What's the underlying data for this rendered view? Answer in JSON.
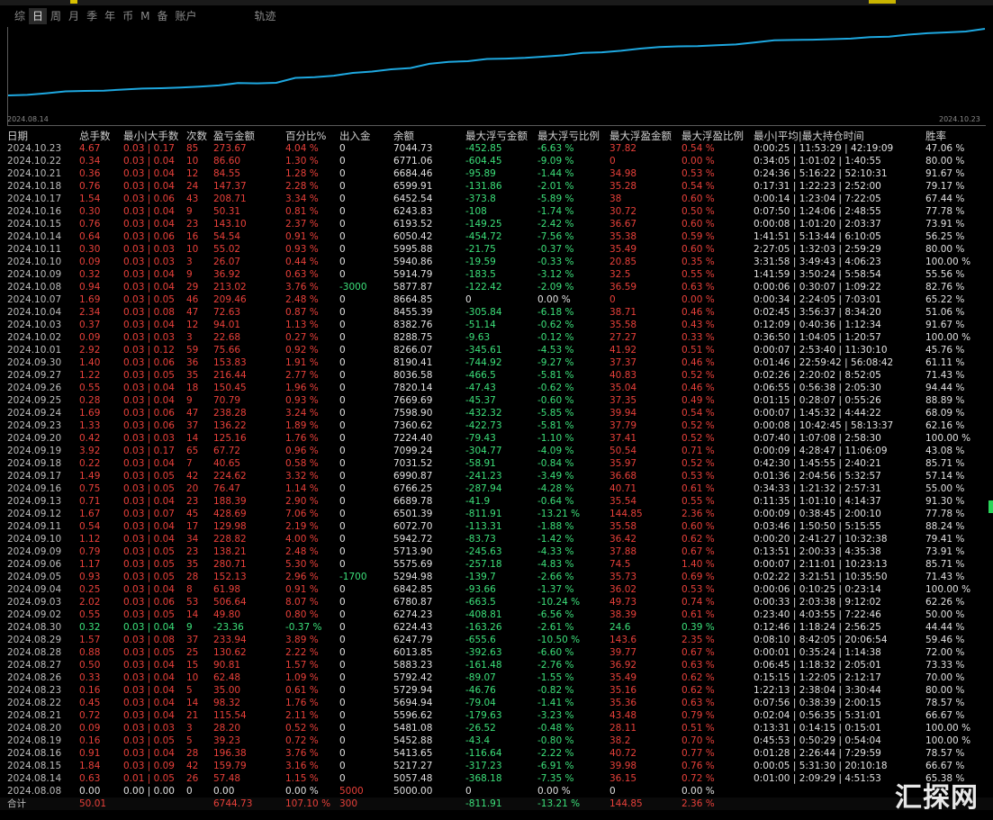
{
  "tabs": [
    "综",
    "日",
    "周",
    "月",
    "季",
    "年",
    "币",
    "M",
    "备",
    "账户"
  ],
  "active_tab": 1,
  "track_tab": "轨迹",
  "chart": {
    "start_date": "2024.08.14",
    "end_date": "2024.10.23",
    "line_color": "#1ea8e0"
  },
  "headers": [
    "日期",
    "总手数",
    "最小|大手数",
    "次数",
    "盈亏金额",
    "百分比%",
    "出入金",
    "余额",
    "最大浮亏金额",
    "最大浮亏比例",
    "最大浮盈金额",
    "最大浮盈比例",
    "最小|平均|最大持仓时间",
    "胜率"
  ],
  "rows": [
    [
      "2024.10.23",
      "4.67",
      "0.03 | 0.17",
      "85",
      "273.67",
      "4.04 %",
      "0",
      "7044.73",
      "-452.85",
      "-6.63 %",
      "37.82",
      "0.54 %",
      "0:00:25 | 11:53:29 | 42:19:09",
      "47.06 %"
    ],
    [
      "2024.10.22",
      "0.34",
      "0.03 | 0.04",
      "10",
      "86.60",
      "1.30 %",
      "0",
      "6771.06",
      "-604.45",
      "-9.09 %",
      "0",
      "0.00 %",
      "0:34:05 | 1:01:02 | 1:40:55",
      "80.00 %"
    ],
    [
      "2024.10.21",
      "0.36",
      "0.03 | 0.04",
      "12",
      "84.55",
      "1.28 %",
      "0",
      "6684.46",
      "-95.89",
      "-1.44 %",
      "34.98",
      "0.53 %",
      "0:24:36 | 5:16:22 | 52:10:31",
      "91.67 %"
    ],
    [
      "2024.10.18",
      "0.76",
      "0.03 | 0.04",
      "24",
      "147.37",
      "2.28 %",
      "0",
      "6599.91",
      "-131.86",
      "-2.01 %",
      "35.28",
      "0.54 %",
      "0:17:31 | 1:22:23 | 2:52:00",
      "79.17 %"
    ],
    [
      "2024.10.17",
      "1.54",
      "0.03 | 0.06",
      "43",
      "208.71",
      "3.34 %",
      "0",
      "6452.54",
      "-373.8",
      "-5.89 %",
      "38",
      "0.60 %",
      "0:00:14 | 1:23:04 | 7:22:05",
      "67.44 %"
    ],
    [
      "2024.10.16",
      "0.30",
      "0.03 | 0.04",
      "9",
      "50.31",
      "0.81 %",
      "0",
      "6243.83",
      "-108",
      "-1.74 %",
      "30.72",
      "0.50 %",
      "0:07:50 | 1:24:06 | 2:48:55",
      "77.78 %"
    ],
    [
      "2024.10.15",
      "0.76",
      "0.03 | 0.04",
      "23",
      "143.10",
      "2.37 %",
      "0",
      "6193.52",
      "-149.25",
      "-2.42 %",
      "36.67",
      "0.60 %",
      "0:00:08 | 1:01:20 | 2:03:37",
      "73.91 %"
    ],
    [
      "2024.10.14",
      "0.64",
      "0.03 | 0.06",
      "16",
      "54.54",
      "0.91 %",
      "0",
      "6050.42",
      "-454.72",
      "-7.56 %",
      "35.38",
      "0.59 %",
      "1:41:51 | 5:13:44 | 6:10:05",
      "56.25 %"
    ],
    [
      "2024.10.11",
      "0.30",
      "0.03 | 0.03",
      "10",
      "55.02",
      "0.93 %",
      "0",
      "5995.88",
      "-21.75",
      "-0.37 %",
      "35.49",
      "0.60 %",
      "2:27:05 | 1:32:03 | 2:59:29",
      "80.00 %"
    ],
    [
      "2024.10.10",
      "0.09",
      "0.03 | 0.03",
      "3",
      "26.07",
      "0.44 %",
      "0",
      "5940.86",
      "-19.59",
      "-0.33 %",
      "20.85",
      "0.35 %",
      "3:31:58 | 3:49:43 | 4:06:23",
      "100.00 %"
    ],
    [
      "2024.10.09",
      "0.32",
      "0.03 | 0.04",
      "9",
      "36.92",
      "0.63 %",
      "0",
      "5914.79",
      "-183.5",
      "-3.12 %",
      "32.5",
      "0.55 %",
      "1:41:59 | 3:50:24 | 5:58:54",
      "55.56 %"
    ],
    [
      "2024.10.08",
      "0.94",
      "0.03 | 0.04",
      "29",
      "213.02",
      "3.76 %",
      "-3000",
      "5877.87",
      "-122.42",
      "-2.09 %",
      "36.59",
      "0.63 %",
      "0:00:06 | 0:30:07 | 1:09:22",
      "82.76 %"
    ],
    [
      "2024.10.07",
      "1.69",
      "0.03 | 0.05",
      "46",
      "209.46",
      "2.48 %",
      "0",
      "8664.85",
      "0",
      "0.00 %",
      "0",
      "0.00 %",
      "0:00:34 | 2:24:05 | 7:03:01",
      "65.22 %"
    ],
    [
      "2024.10.04",
      "2.34",
      "0.03 | 0.08",
      "47",
      "72.63",
      "0.87 %",
      "0",
      "8455.39",
      "-305.84",
      "-6.18 %",
      "38.71",
      "0.46 %",
      "0:02:45 | 3:56:37 | 8:34:20",
      "51.06 %"
    ],
    [
      "2024.10.03",
      "0.37",
      "0.03 | 0.04",
      "12",
      "94.01",
      "1.13 %",
      "0",
      "8382.76",
      "-51.14",
      "-0.62 %",
      "35.58",
      "0.43 %",
      "0:12:09 | 0:40:36 | 1:12:34",
      "91.67 %"
    ],
    [
      "2024.10.02",
      "0.09",
      "0.03 | 0.03",
      "3",
      "22.68",
      "0.27 %",
      "0",
      "8288.75",
      "-9.63",
      "-0.12 %",
      "27.27",
      "0.33 %",
      "0:36:50 | 1:04:05 | 1:20:57",
      "100.00 %"
    ],
    [
      "2024.10.01",
      "2.92",
      "0.03 | 0.12",
      "59",
      "75.66",
      "0.92 %",
      "0",
      "8266.07",
      "-345.61",
      "-4.53 %",
      "41.92",
      "0.51 %",
      "0:00:07 | 2:53:40 | 11:30:10",
      "45.76 %"
    ],
    [
      "2024.09.30",
      "1.40",
      "0.03 | 0.06",
      "36",
      "153.83",
      "1.91 %",
      "0",
      "8190.41",
      "-744.92",
      "-9.27 %",
      "37.37",
      "0.46 %",
      "0:01:46 | 22:59:42 | 56:08:42",
      "61.11 %"
    ],
    [
      "2024.09.27",
      "1.22",
      "0.03 | 0.05",
      "35",
      "216.44",
      "2.77 %",
      "0",
      "8036.58",
      "-466.5",
      "-5.81 %",
      "40.83",
      "0.52 %",
      "0:02:26 | 2:20:02 | 8:52:05",
      "71.43 %"
    ],
    [
      "2024.09.26",
      "0.55",
      "0.03 | 0.04",
      "18",
      "150.45",
      "1.96 %",
      "0",
      "7820.14",
      "-47.43",
      "-0.62 %",
      "35.04",
      "0.46 %",
      "0:06:55 | 0:56:38 | 2:05:30",
      "94.44 %"
    ],
    [
      "2024.09.25",
      "0.28",
      "0.03 | 0.04",
      "9",
      "70.79",
      "0.93 %",
      "0",
      "7669.69",
      "-45.37",
      "-0.60 %",
      "37.35",
      "0.49 %",
      "0:01:15 | 0:28:07 | 0:55:26",
      "88.89 %"
    ],
    [
      "2024.09.24",
      "1.69",
      "0.03 | 0.06",
      "47",
      "238.28",
      "3.24 %",
      "0",
      "7598.90",
      "-432.32",
      "-5.85 %",
      "39.94",
      "0.54 %",
      "0:00:07 | 1:45:32 | 4:44:22",
      "68.09 %"
    ],
    [
      "2024.09.23",
      "1.33",
      "0.03 | 0.06",
      "37",
      "136.22",
      "1.89 %",
      "0",
      "7360.62",
      "-422.73",
      "-5.81 %",
      "37.79",
      "0.52 %",
      "0:00:08 | 10:42:45 | 58:13:37",
      "62.16 %"
    ],
    [
      "2024.09.20",
      "0.42",
      "0.03 | 0.03",
      "14",
      "125.16",
      "1.76 %",
      "0",
      "7224.40",
      "-79.43",
      "-1.10 %",
      "37.41",
      "0.52 %",
      "0:07:40 | 1:07:08 | 2:58:30",
      "100.00 %"
    ],
    [
      "2024.09.19",
      "3.92",
      "0.03 | 0.17",
      "65",
      "67.72",
      "0.96 %",
      "0",
      "7099.24",
      "-304.77",
      "-4.09 %",
      "50.54",
      "0.71 %",
      "0:00:09 | 4:28:47 | 11:06:09",
      "43.08 %"
    ],
    [
      "2024.09.18",
      "0.22",
      "0.03 | 0.04",
      "7",
      "40.65",
      "0.58 %",
      "0",
      "7031.52",
      "-58.91",
      "-0.84 %",
      "35.97",
      "0.52 %",
      "0:42:30 | 1:45:55 | 2:40:21",
      "85.71 %"
    ],
    [
      "2024.09.17",
      "1.49",
      "0.03 | 0.05",
      "42",
      "224.62",
      "3.32 %",
      "0",
      "6990.87",
      "-241.23",
      "-3.49 %",
      "36.68",
      "0.53 %",
      "0:01:36 | 2:04:56 | 5:32:57",
      "57.14 %"
    ],
    [
      "2024.09.16",
      "0.75",
      "0.03 | 0.05",
      "20",
      "76.47",
      "1.14 %",
      "0",
      "6766.25",
      "-287.94",
      "-4.28 %",
      "40.71",
      "0.61 %",
      "0:34:33 | 1:21:32 | 2:57:31",
      "55.00 %"
    ],
    [
      "2024.09.13",
      "0.71",
      "0.03 | 0.04",
      "23",
      "188.39",
      "2.90 %",
      "0",
      "6689.78",
      "-41.9",
      "-0.64 %",
      "35.54",
      "0.55 %",
      "0:11:35 | 1:01:10 | 4:14:37",
      "91.30 %"
    ],
    [
      "2024.09.12",
      "1.67",
      "0.03 | 0.07",
      "45",
      "428.69",
      "7.06 %",
      "0",
      "6501.39",
      "-811.91",
      "-13.21 %",
      "144.85",
      "2.36 %",
      "0:00:09 | 0:38:45 | 2:00:10",
      "77.78 %"
    ],
    [
      "2024.09.11",
      "0.54",
      "0.03 | 0.04",
      "17",
      "129.98",
      "2.19 %",
      "0",
      "6072.70",
      "-113.31",
      "-1.88 %",
      "35.58",
      "0.60 %",
      "0:03:46 | 1:50:50 | 5:15:55",
      "88.24 %"
    ],
    [
      "2024.09.10",
      "1.12",
      "0.03 | 0.04",
      "34",
      "228.82",
      "4.00 %",
      "0",
      "5942.72",
      "-83.73",
      "-1.42 %",
      "36.42",
      "0.62 %",
      "0:00:20 | 2:41:27 | 10:32:38",
      "79.41 %"
    ],
    [
      "2024.09.09",
      "0.79",
      "0.03 | 0.05",
      "23",
      "138.21",
      "2.48 %",
      "0",
      "5713.90",
      "-245.63",
      "-4.33 %",
      "37.88",
      "0.67 %",
      "0:13:51 | 2:00:33 | 4:35:38",
      "73.91 %"
    ],
    [
      "2024.09.06",
      "1.17",
      "0.03 | 0.05",
      "35",
      "280.71",
      "5.30 %",
      "0",
      "5575.69",
      "-257.18",
      "-4.83 %",
      "74.5",
      "1.40 %",
      "0:00:07 | 2:11:01 | 10:23:13",
      "85.71 %"
    ],
    [
      "2024.09.05",
      "0.93",
      "0.03 | 0.05",
      "28",
      "152.13",
      "2.96 %",
      "-1700",
      "5294.98",
      "-139.7",
      "-2.66 %",
      "35.73",
      "0.69 %",
      "0:02:22 | 3:21:51 | 10:35:50",
      "71.43 %"
    ],
    [
      "2024.09.04",
      "0.25",
      "0.03 | 0.04",
      "8",
      "61.98",
      "0.91 %",
      "0",
      "6842.85",
      "-93.66",
      "-1.37 %",
      "36.02",
      "0.53 %",
      "0:00:06 | 0:10:25 | 0:23:14",
      "100.00 %"
    ],
    [
      "2024.09.03",
      "2.02",
      "0.03 | 0.06",
      "53",
      "506.64",
      "8.07 %",
      "0",
      "6780.87",
      "-663.5",
      "-10.24 %",
      "49.73",
      "0.74 %",
      "0:00:33 | 2:03:38 | 9:12:02",
      "62.26 %"
    ],
    [
      "2024.09.02",
      "0.55",
      "0.03 | 0.05",
      "14",
      "49.80",
      "0.80 %",
      "0",
      "6274.23",
      "-408.81",
      "-6.56 %",
      "38.39",
      "0.61 %",
      "0:23:40 | 4:03:55 | 7:22:46",
      "50.00 %"
    ],
    [
      "2024.08.30",
      "0.32",
      "0.03 | 0.04",
      "9",
      "-23.36",
      "-0.37 %",
      "0",
      "6224.43",
      "-163.26",
      "-2.61 %",
      "24.6",
      "0.39 %",
      "0:12:46 | 1:18:24 | 2:56:25",
      "44.44 %"
    ],
    [
      "2024.08.29",
      "1.57",
      "0.03 | 0.08",
      "37",
      "233.94",
      "3.89 %",
      "0",
      "6247.79",
      "-655.6",
      "-10.50 %",
      "143.6",
      "2.35 %",
      "0:08:10 | 8:42:05 | 20:06:54",
      "59.46 %"
    ],
    [
      "2024.08.28",
      "0.88",
      "0.03 | 0.05",
      "25",
      "130.62",
      "2.22 %",
      "0",
      "6013.85",
      "-392.63",
      "-6.60 %",
      "39.77",
      "0.67 %",
      "0:00:01 | 0:35:24 | 1:14:38",
      "72.00 %"
    ],
    [
      "2024.08.27",
      "0.50",
      "0.03 | 0.04",
      "15",
      "90.81",
      "1.57 %",
      "0",
      "5883.23",
      "-161.48",
      "-2.76 %",
      "36.92",
      "0.63 %",
      "0:06:45 | 1:18:32 | 2:05:01",
      "73.33 %"
    ],
    [
      "2024.08.26",
      "0.33",
      "0.03 | 0.04",
      "10",
      "62.48",
      "1.09 %",
      "0",
      "5792.42",
      "-89.07",
      "-1.55 %",
      "35.49",
      "0.62 %",
      "0:15:15 | 1:22:05 | 2:12:17",
      "70.00 %"
    ],
    [
      "2024.08.23",
      "0.16",
      "0.03 | 0.04",
      "5",
      "35.00",
      "0.61 %",
      "0",
      "5729.94",
      "-46.76",
      "-0.82 %",
      "35.16",
      "0.62 %",
      "1:22:13 | 2:38:04 | 3:30:44",
      "80.00 %"
    ],
    [
      "2024.08.22",
      "0.45",
      "0.03 | 0.04",
      "14",
      "98.32",
      "1.76 %",
      "0",
      "5694.94",
      "-79.04",
      "-1.41 %",
      "35.36",
      "0.63 %",
      "0:07:56 | 0:38:39 | 2:00:15",
      "78.57 %"
    ],
    [
      "2024.08.21",
      "0.72",
      "0.03 | 0.04",
      "21",
      "115.54",
      "2.11 %",
      "0",
      "5596.62",
      "-179.63",
      "-3.23 %",
      "43.48",
      "0.79 %",
      "0:02:04 | 0:56:35 | 5:31:01",
      "66.67 %"
    ],
    [
      "2024.08.20",
      "0.09",
      "0.03 | 0.03",
      "3",
      "28.20",
      "0.52 %",
      "0",
      "5481.08",
      "-26.52",
      "-0.48 %",
      "28.11",
      "0.51 %",
      "0:13:31 | 0:14:15 | 0:15:01",
      "100.00 %"
    ],
    [
      "2024.08.19",
      "0.16",
      "0.03 | 0.05",
      "5",
      "39.23",
      "0.72 %",
      "0",
      "5452.88",
      "-43.4",
      "-0.80 %",
      "38.2",
      "0.70 %",
      "0:45:53 | 0:50:29 | 0:54:04",
      "100.00 %"
    ],
    [
      "2024.08.16",
      "0.91",
      "0.03 | 0.04",
      "28",
      "196.38",
      "3.76 %",
      "0",
      "5413.65",
      "-116.64",
      "-2.22 %",
      "40.72",
      "0.77 %",
      "0:01:28 | 2:26:44 | 7:29:59",
      "78.57 %"
    ],
    [
      "2024.08.15",
      "1.84",
      "0.03 | 0.09",
      "42",
      "159.79",
      "3.16 %",
      "0",
      "5217.27",
      "-317.23",
      "-6.91 %",
      "39.98",
      "0.76 %",
      "0:00:05 | 5:31:30 | 20:10:18",
      "66.67 %"
    ],
    [
      "2024.08.14",
      "0.63",
      "0.01 | 0.05",
      "26",
      "57.48",
      "1.15 %",
      "0",
      "5057.48",
      "-368.18",
      "-7.35 %",
      "36.15",
      "0.72 %",
      "0:01:00 | 2:09:29 | 4:51:53",
      "65.38 %"
    ],
    [
      "2024.08.08",
      "0.00",
      "0.00 | 0.00",
      "0",
      "0.00",
      "0.00 %",
      "5000",
      "5000.00",
      "0",
      "0.00 %",
      "0",
      "0.00 %",
      "",
      ""
    ]
  ],
  "total": [
    "合计",
    "50.01",
    "",
    "",
    "6744.73",
    "107.10 %",
    "300",
    "",
    "-811.91",
    "-13.21 %",
    "144.85",
    "2.36 %",
    "",
    ""
  ],
  "watermark": "汇探网"
}
